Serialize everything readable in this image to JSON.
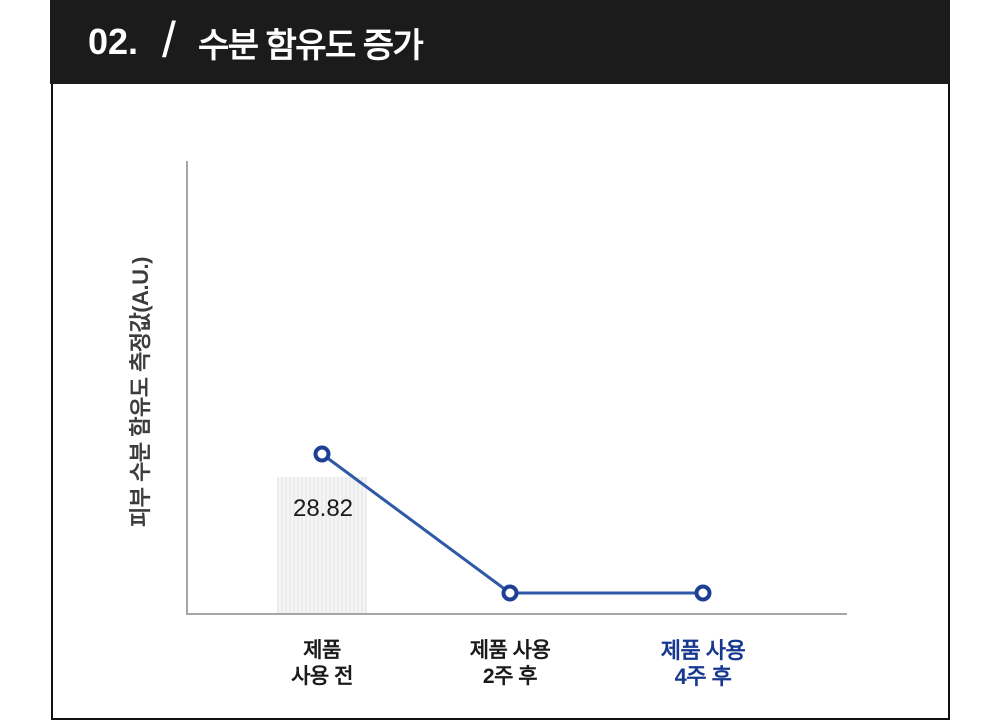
{
  "header": {
    "number": "02.",
    "separator": "/",
    "title": "수분 함유도 증가"
  },
  "chart_data": {
    "type": "line",
    "title": "수분 함유도 증가",
    "ylabel": "피부 수분 함유도 측정값(A.U.)",
    "xlabel": "",
    "ylim": [
      0,
      96
    ],
    "grid": false,
    "legend": false,
    "categories": [
      "제품\n사용 전",
      "제품 사용\n2주 후",
      "제품 사용\n4주 후"
    ],
    "series": [
      {
        "name": "bar-before-use",
        "type": "bar",
        "values": [
          28.82,
          null,
          null
        ],
        "data_label": "28.82",
        "color": "#ececec"
      },
      {
        "name": "moisture-line",
        "type": "line",
        "values": [
          33.7,
          4.2,
          4.2
        ],
        "color": "#2e59a6",
        "marker_color": "#1e3f94"
      }
    ],
    "emphasized_category_index": 2,
    "emphasis_color": "#16388e"
  },
  "colors": {
    "header_bg": "#1b1b1b",
    "header_text": "#ffffff",
    "axis": "#a6a6a6",
    "panel_border": "#111111",
    "tick_text": "#1a1a1a"
  }
}
